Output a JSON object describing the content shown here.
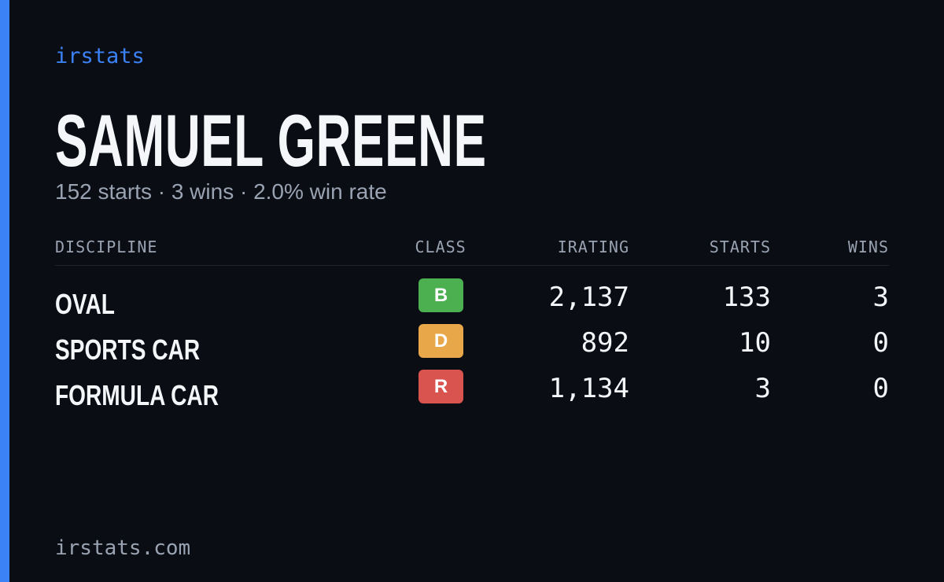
{
  "brand": "irstats",
  "driver": {
    "name": "SAMUEL GREENE",
    "summary": "152 starts · 3 wins · 2.0% win rate"
  },
  "table": {
    "headers": [
      "DISCIPLINE",
      "CLASS",
      "IRATING",
      "STARTS",
      "WINS"
    ],
    "rows": [
      [
        "OVAL",
        "B",
        "2,137",
        "133",
        "3"
      ],
      [
        "SPORTS CAR",
        "D",
        "892",
        "10",
        "0"
      ],
      [
        "FORMULA CAR",
        "R",
        "1,134",
        "3",
        "0"
      ]
    ],
    "class_colors": [
      "#4caf50",
      "#e8a84a",
      "#d9534f"
    ]
  },
  "footer": "irstats.com"
}
